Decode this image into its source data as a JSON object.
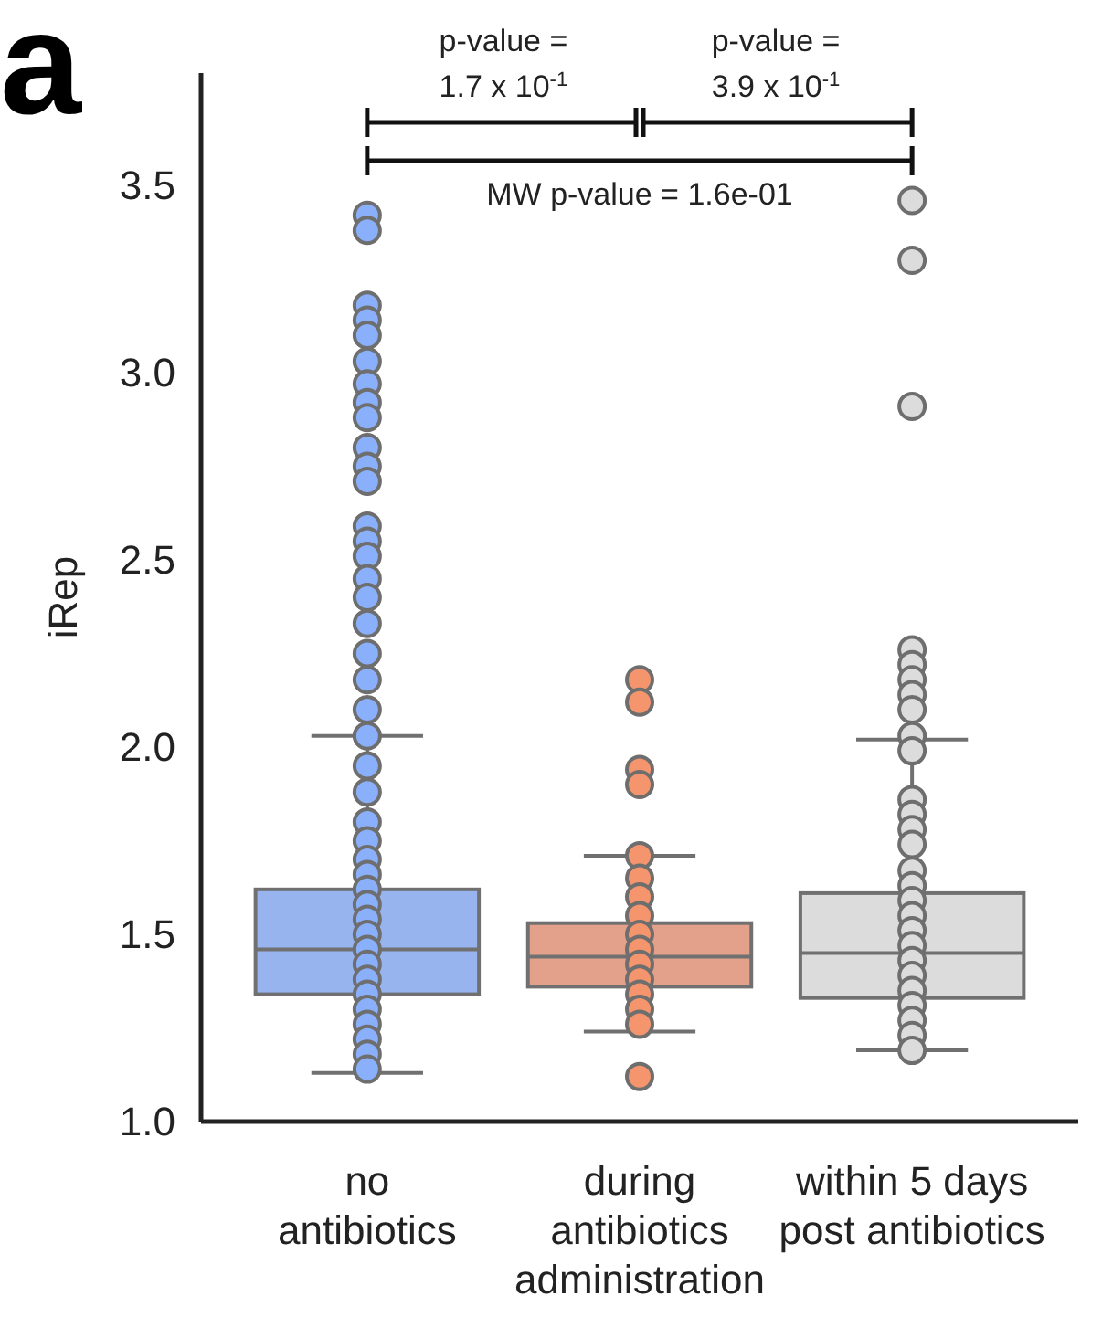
{
  "chart_data": {
    "type": "box",
    "ylabel": "iRep",
    "categories": [
      "no\nantibiotics",
      "during\nantibiotics\nadministration",
      "within 5 days\npost antibiotics"
    ],
    "ylim": [
      1.0,
      3.8
    ],
    "yticks": [
      {
        "value": 1.0,
        "label": "1.0"
      },
      1.5,
      {
        "value": 2.0,
        "label": "2.0"
      },
      2.5,
      {
        "value": 3.0,
        "label": "3.0"
      },
      3.5
    ],
    "marker": "circle",
    "annotations": [
      "a",
      "p-value =\n1.7 x 10$^{-1}$",
      "p-value =\n3.9 x 10$^{-1}$",
      "MW p-value = 1.6e-01"
    ],
    "series": [
      {
        "colors": [
          "#97b4ee",
          "#e3a08a",
          "#dcdcdc"
        ],
        "boxes": [
          {
            "low": 1.13,
            "q1": 1.34,
            "median": 1.46,
            "q3": 1.62,
            "high": 2.03
          },
          {
            "low": 1.24,
            "q1": 1.36,
            "median": 1.44,
            "q3": 1.53,
            "high": 1.71
          },
          {
            "low": 1.19,
            "q1": 1.33,
            "median": 1.45,
            "q3": 1.61,
            "high": 2.02
          }
        ]
      },
      {
        "type": "scatter",
        "color": "#8ab0fb",
        "x": [
          "no\nantibiotics",
          "no\nantibiotics",
          "no\nantibiotics",
          "no\nantibiotics",
          "no\nantibiotics",
          "no\nantibiotics",
          "no\nantibiotics",
          "no\nantibiotics",
          "no\nantibiotics",
          "no\nantibiotics",
          "no\nantibiotics",
          "no\nantibiotics",
          "no\nantibiotics",
          "no\nantibiotics",
          "no\nantibiotics",
          "no\nantibiotics",
          "no\nantibiotics",
          "no\nantibiotics",
          "no\nantibiotics",
          "no\nantibiotics",
          "no\nantibiotics",
          "no\nantibiotics",
          "no\nantibiotics",
          "no\nantibiotics",
          "no\nantibiotics",
          "no\nantibiotics",
          "no\nantibiotics",
          "no\nantibiotics",
          "no\nantibiotics",
          "no\nantibiotics",
          "no\nantibiotics",
          "no\nantibiotics",
          "no\nantibiotics",
          "no\nantibiotics",
          "no\nantibiotics",
          "no\nantibiotics",
          "no\nantibiotics",
          "no\nantibiotics",
          "no\nantibiotics",
          "no\nantibiotics",
          "no\nantibiotics"
        ],
        "values": [
          3.42,
          3.38,
          3.18,
          3.14,
          3.1,
          3.03,
          2.97,
          2.92,
          2.88,
          2.8,
          2.75,
          2.71,
          2.59,
          2.55,
          2.51,
          2.45,
          2.4,
          2.33,
          2.25,
          2.18,
          2.1,
          2.03,
          1.95,
          1.88,
          1.8,
          1.75,
          1.7,
          1.66,
          1.62,
          1.58,
          1.54,
          1.5,
          1.46,
          1.42,
          1.38,
          1.34,
          1.3,
          1.26,
          1.22,
          1.18,
          1.14
        ]
      },
      {
        "type": "scatter",
        "color": "#f4956d",
        "x": [
          "during\nantibiotics\nadministration",
          "during\nantibiotics\nadministration",
          "during\nantibiotics\nadministration",
          "during\nantibiotics\nadministration",
          "during\nantibiotics\nadministration",
          "during\nantibiotics\nadministration",
          "during\nantibiotics\nadministration",
          "during\nantibiotics\nadministration",
          "during\nantibiotics\nadministration",
          "during\nantibiotics\nadministration",
          "during\nantibiotics\nadministration",
          "during\nantibiotics\nadministration",
          "during\nantibiotics\nadministration",
          "during\nantibiotics\nadministration",
          "during\nantibiotics\nadministration",
          "during\nantibiotics\nadministration"
        ],
        "values": [
          2.18,
          2.12,
          1.94,
          1.9,
          1.71,
          1.65,
          1.6,
          1.55,
          1.5,
          1.46,
          1.42,
          1.38,
          1.34,
          1.3,
          1.26,
          1.12
        ]
      },
      {
        "type": "scatter",
        "color": "#dcdcdc",
        "x": [
          "within 5 days\npost antibiotics",
          "within 5 days\npost antibiotics",
          "within 5 days\npost antibiotics",
          "within 5 days\npost antibiotics",
          "within 5 days\npost antibiotics",
          "within 5 days\npost antibiotics",
          "within 5 days\npost antibiotics",
          "within 5 days\npost antibiotics",
          "within 5 days\npost antibiotics",
          "within 5 days\npost antibiotics",
          "within 5 days\npost antibiotics",
          "within 5 days\npost antibiotics",
          "within 5 days\npost antibiotics",
          "within 5 days\npost antibiotics",
          "within 5 days\npost antibiotics",
          "within 5 days\npost antibiotics",
          "within 5 days\npost antibiotics",
          "within 5 days\npost antibiotics",
          "within 5 days\npost antibiotics",
          "within 5 days\npost antibiotics",
          "within 5 days\npost antibiotics",
          "within 5 days\npost antibiotics",
          "within 5 days\npost antibiotics",
          "within 5 days\npost antibiotics",
          "within 5 days\npost antibiotics",
          "within 5 days\npost antibiotics",
          "within 5 days\npost antibiotics"
        ],
        "values": [
          3.46,
          3.3,
          2.91,
          2.26,
          2.22,
          2.18,
          2.14,
          2.1,
          2.03,
          1.99,
          1.86,
          1.82,
          1.78,
          1.74,
          1.67,
          1.63,
          1.59,
          1.55,
          1.51,
          1.47,
          1.43,
          1.39,
          1.35,
          1.31,
          1.27,
          1.23,
          1.19
        ]
      }
    ]
  }
}
